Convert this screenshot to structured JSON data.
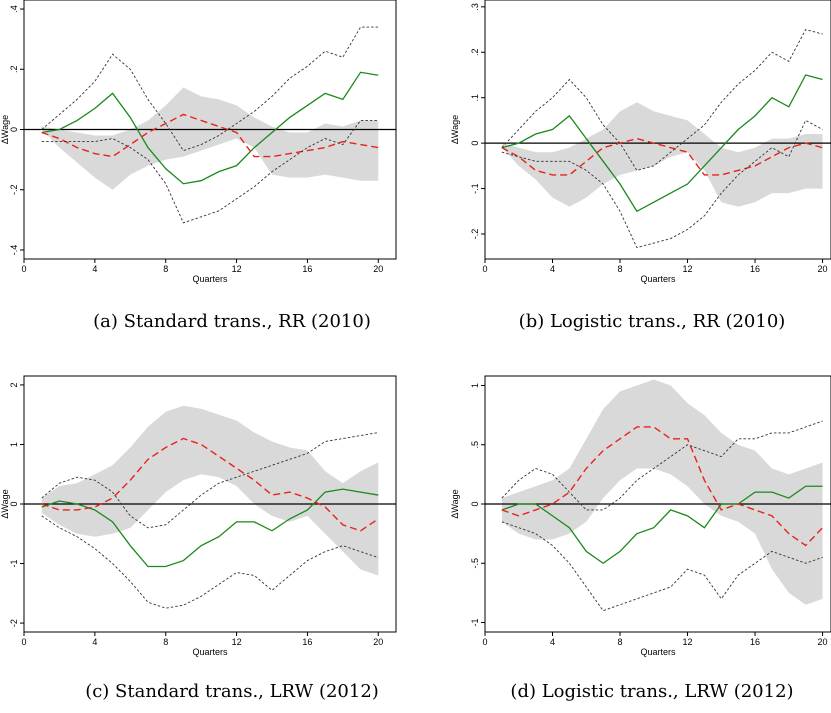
{
  "chart_data": [
    {
      "type": "line",
      "caption": "(a) Standard trans., RR (2010)",
      "xlabel": "Quarters",
      "ylabel": "ΔWage",
      "xlim": [
        0,
        21
      ],
      "ylim": [
        -0.43,
        0.43
      ],
      "xticks": [
        0,
        4,
        8,
        12,
        16,
        20
      ],
      "yticks": [
        -0.4,
        -0.2,
        0,
        0.2,
        0.4
      ],
      "ytick_labels": [
        "-.4",
        "-.2",
        "0",
        ".2",
        ".4"
      ],
      "x": [
        1,
        2,
        3,
        4,
        5,
        6,
        7,
        8,
        9,
        10,
        11,
        12,
        13,
        14,
        15,
        16,
        17,
        18,
        19,
        20
      ],
      "band": {
        "lower": [
          0.0,
          -0.06,
          -0.11,
          -0.16,
          -0.2,
          -0.15,
          -0.12,
          -0.1,
          -0.09,
          -0.07,
          -0.05,
          -0.03,
          -0.06,
          -0.15,
          -0.16,
          -0.16,
          -0.15,
          -0.16,
          -0.17,
          -0.17
        ],
        "upper": [
          0.01,
          0.0,
          -0.01,
          -0.02,
          -0.02,
          0.0,
          0.03,
          0.08,
          0.14,
          0.11,
          0.1,
          0.08,
          0.04,
          0.01,
          -0.01,
          -0.01,
          0.02,
          0.01,
          0.03,
          0.03
        ]
      },
      "series": [
        {
          "style": "solid-green",
          "values": [
            -0.01,
            0.0,
            0.03,
            0.07,
            0.12,
            0.04,
            -0.06,
            -0.13,
            -0.18,
            -0.17,
            -0.14,
            -0.12,
            -0.06,
            -0.01,
            0.04,
            0.08,
            0.12,
            0.1,
            0.19,
            0.18
          ]
        },
        {
          "style": "dashed-red",
          "values": [
            -0.01,
            -0.03,
            -0.06,
            -0.08,
            -0.09,
            -0.05,
            -0.01,
            0.02,
            0.05,
            0.03,
            0.01,
            -0.01,
            -0.09,
            -0.09,
            -0.08,
            -0.07,
            -0.06,
            -0.04,
            -0.05,
            -0.06
          ]
        },
        {
          "style": "dotted-upper",
          "values": [
            0.0,
            0.05,
            0.1,
            0.16,
            0.25,
            0.2,
            0.1,
            0.02,
            -0.07,
            -0.05,
            -0.02,
            0.02,
            0.06,
            0.11,
            0.17,
            0.21,
            0.26,
            0.24,
            0.34,
            0.34
          ]
        },
        {
          "style": "dotted-lower",
          "values": [
            -0.04,
            -0.04,
            -0.04,
            -0.04,
            -0.03,
            -0.06,
            -0.1,
            -0.18,
            -0.31,
            -0.29,
            -0.27,
            -0.23,
            -0.19,
            -0.14,
            -0.1,
            -0.06,
            -0.03,
            -0.05,
            0.03,
            0.03
          ]
        }
      ]
    },
    {
      "type": "line",
      "caption": "(b) Logistic trans., RR (2010)",
      "xlabel": "Quarters",
      "ylabel": "ΔWage",
      "xlim": [
        0,
        20.5
      ],
      "ylim": [
        -0.255,
        0.315
      ],
      "xticks": [
        0,
        4,
        8,
        12,
        16,
        20
      ],
      "yticks": [
        -0.2,
        -0.1,
        0,
        0.1,
        0.2,
        0.3
      ],
      "ytick_labels": [
        "-.2",
        "-.1",
        "0",
        ".1",
        ".2",
        ".3"
      ],
      "x": [
        1,
        2,
        3,
        4,
        5,
        6,
        7,
        8,
        9,
        10,
        11,
        12,
        13,
        14,
        15,
        16,
        17,
        18,
        19,
        20
      ],
      "band": {
        "lower": [
          -0.01,
          -0.05,
          -0.08,
          -0.12,
          -0.14,
          -0.12,
          -0.09,
          -0.07,
          -0.06,
          -0.05,
          -0.03,
          -0.02,
          -0.06,
          -0.13,
          -0.14,
          -0.13,
          -0.11,
          -0.11,
          -0.1,
          -0.1
        ],
        "upper": [
          0.0,
          -0.01,
          -0.02,
          -0.02,
          -0.01,
          0.01,
          0.03,
          0.07,
          0.09,
          0.07,
          0.06,
          0.05,
          0.02,
          -0.01,
          -0.02,
          -0.01,
          0.01,
          0.01,
          0.02,
          0.02
        ]
      },
      "series": [
        {
          "style": "solid-green",
          "values": [
            -0.01,
            0.0,
            0.02,
            0.03,
            0.06,
            0.01,
            -0.04,
            -0.09,
            -0.15,
            -0.13,
            -0.11,
            -0.09,
            -0.05,
            -0.01,
            0.03,
            0.06,
            0.1,
            0.08,
            0.15,
            0.14
          ]
        },
        {
          "style": "dashed-red",
          "values": [
            -0.01,
            -0.03,
            -0.06,
            -0.07,
            -0.07,
            -0.04,
            -0.01,
            0.0,
            0.01,
            0.0,
            -0.01,
            -0.02,
            -0.07,
            -0.07,
            -0.06,
            -0.05,
            -0.03,
            -0.01,
            0.0,
            -0.01
          ]
        },
        {
          "style": "dotted-upper",
          "values": [
            -0.01,
            0.03,
            0.07,
            0.1,
            0.14,
            0.1,
            0.04,
            0.0,
            -0.06,
            -0.05,
            -0.02,
            0.01,
            0.04,
            0.09,
            0.13,
            0.16,
            0.2,
            0.18,
            0.25,
            0.24
          ]
        },
        {
          "style": "dotted-lower",
          "values": [
            -0.02,
            -0.03,
            -0.04,
            -0.04,
            -0.04,
            -0.06,
            -0.09,
            -0.15,
            -0.23,
            -0.22,
            -0.21,
            -0.19,
            -0.16,
            -0.11,
            -0.07,
            -0.04,
            -0.01,
            -0.03,
            0.05,
            0.03
          ]
        }
      ]
    },
    {
      "type": "line",
      "caption": "(c) Standard trans., LRW (2012)",
      "xlabel": "Quarters",
      "ylabel": "ΔWage",
      "xlim": [
        0,
        21
      ],
      "ylim": [
        -2.15,
        2.15
      ],
      "xticks": [
        0,
        4,
        8,
        12,
        16,
        20
      ],
      "yticks": [
        -2,
        -1,
        0,
        1,
        2
      ],
      "ytick_labels": [
        "-2",
        "-1",
        "0",
        "1",
        "2"
      ],
      "x": [
        1,
        2,
        3,
        4,
        5,
        6,
        7,
        8,
        9,
        10,
        11,
        12,
        13,
        14,
        15,
        16,
        17,
        18,
        19,
        20
      ],
      "band": {
        "lower": [
          -0.15,
          -0.35,
          -0.5,
          -0.55,
          -0.5,
          -0.4,
          -0.1,
          0.2,
          0.4,
          0.5,
          0.45,
          0.3,
          0.0,
          -0.2,
          -0.3,
          -0.2,
          -0.5,
          -0.8,
          -1.1,
          -1.2
        ],
        "upper": [
          0.1,
          0.3,
          0.35,
          0.5,
          0.65,
          0.95,
          1.3,
          1.55,
          1.65,
          1.6,
          1.5,
          1.4,
          1.2,
          1.05,
          0.95,
          0.9,
          0.55,
          0.35,
          0.55,
          0.7
        ]
      },
      "series": [
        {
          "style": "solid-green",
          "values": [
            -0.05,
            0.05,
            0.0,
            -0.1,
            -0.3,
            -0.7,
            -1.05,
            -1.05,
            -0.95,
            -0.7,
            -0.55,
            -0.3,
            -0.3,
            -0.45,
            -0.25,
            -0.1,
            0.2,
            0.25,
            0.2,
            0.15
          ]
        },
        {
          "style": "dashed-red",
          "values": [
            0.0,
            -0.1,
            -0.1,
            -0.05,
            0.1,
            0.4,
            0.75,
            0.95,
            1.1,
            1.0,
            0.8,
            0.6,
            0.4,
            0.15,
            0.2,
            0.1,
            -0.05,
            -0.35,
            -0.45,
            -0.25
          ]
        },
        {
          "style": "dotted-upper",
          "values": [
            0.1,
            0.35,
            0.45,
            0.4,
            0.2,
            -0.2,
            -0.4,
            -0.35,
            -0.1,
            0.15,
            0.35,
            0.45,
            0.55,
            0.65,
            0.75,
            0.85,
            1.05,
            1.1,
            1.15,
            1.2
          ]
        },
        {
          "style": "dotted-lower",
          "values": [
            -0.2,
            -0.4,
            -0.55,
            -0.75,
            -1.0,
            -1.3,
            -1.65,
            -1.75,
            -1.7,
            -1.55,
            -1.35,
            -1.15,
            -1.2,
            -1.45,
            -1.2,
            -0.95,
            -0.8,
            -0.7,
            -0.8,
            -0.9
          ]
        }
      ]
    },
    {
      "type": "line",
      "caption": "(d) Logistic trans., LRW (2012)",
      "xlabel": "Quarters",
      "ylabel": "ΔWage",
      "xlim": [
        0,
        20.5
      ],
      "ylim": [
        -1.08,
        1.08
      ],
      "xticks": [
        0,
        4,
        8,
        12,
        16,
        20
      ],
      "yticks": [
        -1,
        -0.5,
        0,
        0.5,
        1
      ],
      "ytick_labels": [
        "-1",
        "-.5",
        "0",
        ".5",
        "1"
      ],
      "x": [
        1,
        2,
        3,
        4,
        5,
        6,
        7,
        8,
        9,
        10,
        11,
        12,
        13,
        14,
        15,
        16,
        17,
        18,
        19,
        20
      ],
      "band": {
        "lower": [
          -0.15,
          -0.25,
          -0.3,
          -0.3,
          -0.25,
          -0.15,
          0.05,
          0.2,
          0.3,
          0.3,
          0.25,
          0.15,
          0.0,
          -0.1,
          -0.15,
          -0.25,
          -0.55,
          -0.75,
          -0.85,
          -0.8
        ],
        "upper": [
          0.05,
          0.1,
          0.15,
          0.2,
          0.3,
          0.55,
          0.8,
          0.95,
          1.0,
          1.05,
          1.0,
          0.85,
          0.75,
          0.6,
          0.5,
          0.45,
          0.3,
          0.25,
          0.3,
          0.35
        ]
      },
      "series": [
        {
          "style": "solid-green",
          "values": [
            -0.05,
            0.0,
            0.0,
            -0.1,
            -0.2,
            -0.4,
            -0.5,
            -0.4,
            -0.25,
            -0.2,
            -0.05,
            -0.1,
            -0.2,
            0.0,
            0.0,
            0.1,
            0.1,
            0.05,
            0.15,
            0.15
          ]
        },
        {
          "style": "dashed-red",
          "values": [
            -0.05,
            -0.1,
            -0.05,
            0.0,
            0.1,
            0.3,
            0.45,
            0.55,
            0.65,
            0.65,
            0.55,
            0.55,
            0.2,
            -0.05,
            0.0,
            -0.05,
            -0.1,
            -0.25,
            -0.35,
            -0.2
          ]
        },
        {
          "style": "dotted-upper",
          "values": [
            0.05,
            0.2,
            0.3,
            0.25,
            0.1,
            -0.05,
            -0.05,
            0.05,
            0.2,
            0.3,
            0.4,
            0.5,
            0.45,
            0.4,
            0.55,
            0.55,
            0.6,
            0.6,
            0.65,
            0.7
          ]
        },
        {
          "style": "dotted-lower",
          "values": [
            -0.15,
            -0.2,
            -0.25,
            -0.35,
            -0.5,
            -0.7,
            -0.9,
            -0.85,
            -0.8,
            -0.75,
            -0.7,
            -0.55,
            -0.6,
            -0.8,
            -0.6,
            -0.5,
            -0.4,
            -0.45,
            -0.5,
            -0.45
          ]
        }
      ]
    }
  ],
  "style": {
    "band_color": "#d9d9d9",
    "green": "#1a8a1a",
    "red": "#e8231a",
    "dotted": "#333333",
    "zero_line": "#000000"
  }
}
